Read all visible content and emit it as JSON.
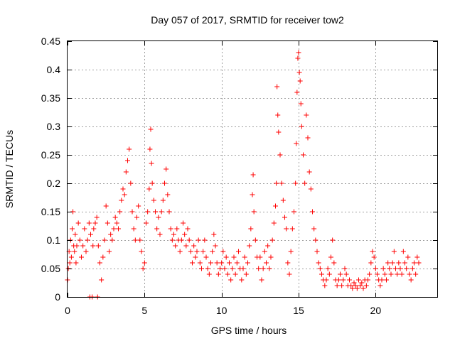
{
  "chart_data": {
    "type": "scatter",
    "title": "Day 057 of 2017, SRMTID for receiver tow2",
    "xlabel": "GPS time / hours",
    "ylabel": "SRMTID / TECUs",
    "xlim": [
      0,
      24
    ],
    "ylim": [
      0,
      0.45
    ],
    "xticks": [
      0,
      5,
      10,
      15,
      20
    ],
    "xtick_labels": [
      "0",
      "5",
      "10",
      "15",
      "20"
    ],
    "yticks": [
      0,
      0.05,
      0.1,
      0.15,
      0.2,
      0.25,
      0.3,
      0.35,
      0.4,
      0.45
    ],
    "ytick_labels": [
      "0",
      "0.05",
      "0.1",
      "0.15",
      "0.2",
      "0.25",
      "0.3",
      "0.35",
      "0.4",
      "0.45"
    ],
    "grid": true,
    "marker": "+",
    "color": "#ff0000",
    "series": [
      {
        "name": "SRMTID",
        "points": [
          [
            0.0,
            0.03
          ],
          [
            0.05,
            0.05
          ],
          [
            0.1,
            0.08
          ],
          [
            0.15,
            0.06
          ],
          [
            0.2,
            0.1
          ],
          [
            0.25,
            0.07
          ],
          [
            0.3,
            0.12
          ],
          [
            0.35,
            0.15
          ],
          [
            0.4,
            0.09
          ],
          [
            0.45,
            0.08
          ],
          [
            0.5,
            0.11
          ],
          [
            0.55,
            0.06
          ],
          [
            0.6,
            0.09
          ],
          [
            0.7,
            0.13
          ],
          [
            0.8,
            0.1
          ],
          [
            0.9,
            0.07
          ],
          [
            1.0,
            0.09
          ],
          [
            1.1,
            0.12
          ],
          [
            1.2,
            0.08
          ],
          [
            1.3,
            0.1
          ],
          [
            1.4,
            0.13
          ],
          [
            1.45,
            0.0
          ],
          [
            1.5,
            0.11
          ],
          [
            1.6,
            0.0
          ],
          [
            1.65,
            0.09
          ],
          [
            1.7,
            0.12
          ],
          [
            1.8,
            0.13
          ],
          [
            1.9,
            0.14
          ],
          [
            1.95,
            0.0
          ],
          [
            2.0,
            0.09
          ],
          [
            2.1,
            0.06
          ],
          [
            2.2,
            0.03
          ],
          [
            2.3,
            0.07
          ],
          [
            2.4,
            0.1
          ],
          [
            2.5,
            0.16
          ],
          [
            2.6,
            0.13
          ],
          [
            2.7,
            0.08
          ],
          [
            2.8,
            0.11
          ],
          [
            2.9,
            0.1
          ],
          [
            3.0,
            0.12
          ],
          [
            3.1,
            0.14
          ],
          [
            3.2,
            0.13
          ],
          [
            3.3,
            0.12
          ],
          [
            3.4,
            0.15
          ],
          [
            3.5,
            0.17
          ],
          [
            3.6,
            0.19
          ],
          [
            3.7,
            0.18
          ],
          [
            3.8,
            0.22
          ],
          [
            3.9,
            0.24
          ],
          [
            4.0,
            0.26
          ],
          [
            4.1,
            0.2
          ],
          [
            4.2,
            0.15
          ],
          [
            4.3,
            0.12
          ],
          [
            4.4,
            0.1
          ],
          [
            4.5,
            0.14
          ],
          [
            4.6,
            0.16
          ],
          [
            4.7,
            0.1
          ],
          [
            4.8,
            0.08
          ],
          [
            4.9,
            0.05
          ],
          [
            5.0,
            0.06
          ],
          [
            5.1,
            0.13
          ],
          [
            5.2,
            0.15
          ],
          [
            5.3,
            0.19
          ],
          [
            5.35,
            0.26
          ],
          [
            5.4,
            0.295
          ],
          [
            5.45,
            0.235
          ],
          [
            5.5,
            0.2
          ],
          [
            5.6,
            0.17
          ],
          [
            5.7,
            0.15
          ],
          [
            5.8,
            0.12
          ],
          [
            5.9,
            0.14
          ],
          [
            6.0,
            0.11
          ],
          [
            6.1,
            0.15
          ],
          [
            6.2,
            0.17
          ],
          [
            6.3,
            0.2
          ],
          [
            6.4,
            0.225
          ],
          [
            6.5,
            0.18
          ],
          [
            6.6,
            0.15
          ],
          [
            6.7,
            0.12
          ],
          [
            6.8,
            0.1
          ],
          [
            6.9,
            0.11
          ],
          [
            7.0,
            0.09
          ],
          [
            7.1,
            0.12
          ],
          [
            7.2,
            0.1
          ],
          [
            7.3,
            0.08
          ],
          [
            7.4,
            0.1
          ],
          [
            7.5,
            0.13
          ],
          [
            7.6,
            0.11
          ],
          [
            7.7,
            0.09
          ],
          [
            7.8,
            0.12
          ],
          [
            7.9,
            0.1
          ],
          [
            8.0,
            0.08
          ],
          [
            8.1,
            0.06
          ],
          [
            8.2,
            0.09
          ],
          [
            8.3,
            0.07
          ],
          [
            8.4,
            0.08
          ],
          [
            8.5,
            0.1
          ],
          [
            8.6,
            0.06
          ],
          [
            8.7,
            0.05
          ],
          [
            8.8,
            0.08
          ],
          [
            8.9,
            0.1
          ],
          [
            9.0,
            0.07
          ],
          [
            9.1,
            0.05
          ],
          [
            9.2,
            0.04
          ],
          [
            9.3,
            0.06
          ],
          [
            9.4,
            0.08
          ],
          [
            9.5,
            0.11
          ],
          [
            9.6,
            0.09
          ],
          [
            9.7,
            0.06
          ],
          [
            9.8,
            0.04
          ],
          [
            9.9,
            0.05
          ],
          [
            10.0,
            0.06
          ],
          [
            10.1,
            0.08
          ],
          [
            10.2,
            0.05
          ],
          [
            10.3,
            0.07
          ],
          [
            10.4,
            0.04
          ],
          [
            10.5,
            0.06
          ],
          [
            10.6,
            0.03
          ],
          [
            10.7,
            0.05
          ],
          [
            10.8,
            0.07
          ],
          [
            10.9,
            0.04
          ],
          [
            11.0,
            0.06
          ],
          [
            11.1,
            0.08
          ],
          [
            11.2,
            0.05
          ],
          [
            11.3,
            0.03
          ],
          [
            11.4,
            0.05
          ],
          [
            11.5,
            0.07
          ],
          [
            11.6,
            0.04
          ],
          [
            11.7,
            0.06
          ],
          [
            11.8,
            0.09
          ],
          [
            11.9,
            0.12
          ],
          [
            12.0,
            0.18
          ],
          [
            12.05,
            0.215
          ],
          [
            12.1,
            0.15
          ],
          [
            12.2,
            0.1
          ],
          [
            12.3,
            0.07
          ],
          [
            12.4,
            0.05
          ],
          [
            12.5,
            0.07
          ],
          [
            12.6,
            0.03
          ],
          [
            12.7,
            0.05
          ],
          [
            12.8,
            0.08
          ],
          [
            12.9,
            0.06
          ],
          [
            13.0,
            0.09
          ],
          [
            13.1,
            0.05
          ],
          [
            13.2,
            0.07
          ],
          [
            13.3,
            0.1
          ],
          [
            13.4,
            0.13
          ],
          [
            13.5,
            0.16
          ],
          [
            13.55,
            0.2
          ],
          [
            13.6,
            0.37
          ],
          [
            13.65,
            0.32
          ],
          [
            13.7,
            0.29
          ],
          [
            13.8,
            0.25
          ],
          [
            13.9,
            0.2
          ],
          [
            14.0,
            0.17
          ],
          [
            14.1,
            0.14
          ],
          [
            14.2,
            0.12
          ],
          [
            14.3,
            0.06
          ],
          [
            14.4,
            0.04
          ],
          [
            14.5,
            0.08
          ],
          [
            14.6,
            0.12
          ],
          [
            14.7,
            0.15
          ],
          [
            14.8,
            0.2
          ],
          [
            14.85,
            0.27
          ],
          [
            14.9,
            0.36
          ],
          [
            14.95,
            0.42
          ],
          [
            15.0,
            0.43
          ],
          [
            15.05,
            0.395
          ],
          [
            15.1,
            0.38
          ],
          [
            15.15,
            0.34
          ],
          [
            15.2,
            0.3
          ],
          [
            15.3,
            0.25
          ],
          [
            15.4,
            0.2
          ],
          [
            15.5,
            0.32
          ],
          [
            15.6,
            0.28
          ],
          [
            15.7,
            0.22
          ],
          [
            15.8,
            0.19
          ],
          [
            15.9,
            0.15
          ],
          [
            16.0,
            0.12
          ],
          [
            16.1,
            0.1
          ],
          [
            16.2,
            0.08
          ],
          [
            16.3,
            0.06
          ],
          [
            16.4,
            0.05
          ],
          [
            16.5,
            0.04
          ],
          [
            16.6,
            0.03
          ],
          [
            16.7,
            0.02
          ],
          [
            16.8,
            0.03
          ],
          [
            16.9,
            0.05
          ],
          [
            17.0,
            0.04
          ],
          [
            17.1,
            0.07
          ],
          [
            17.2,
            0.1
          ],
          [
            17.3,
            0.06
          ],
          [
            17.4,
            0.03
          ],
          [
            17.5,
            0.02
          ],
          [
            17.6,
            0.03
          ],
          [
            17.7,
            0.04
          ],
          [
            17.8,
            0.02
          ],
          [
            17.9,
            0.03
          ],
          [
            18.0,
            0.05
          ],
          [
            18.1,
            0.04
          ],
          [
            18.2,
            0.02
          ],
          [
            18.3,
            0.03
          ],
          [
            18.4,
            0.02
          ],
          [
            18.5,
            0.015
          ],
          [
            18.6,
            0.025
          ],
          [
            18.7,
            0.02
          ],
          [
            18.8,
            0.015
          ],
          [
            18.9,
            0.03
          ],
          [
            19.0,
            0.02
          ],
          [
            19.1,
            0.025
          ],
          [
            19.2,
            0.015
          ],
          [
            19.3,
            0.03
          ],
          [
            19.4,
            0.02
          ],
          [
            19.5,
            0.03
          ],
          [
            19.6,
            0.04
          ],
          [
            19.7,
            0.06
          ],
          [
            19.8,
            0.08
          ],
          [
            19.9,
            0.07
          ],
          [
            20.0,
            0.05
          ],
          [
            20.1,
            0.04
          ],
          [
            20.2,
            0.03
          ],
          [
            20.3,
            0.02
          ],
          [
            20.4,
            0.03
          ],
          [
            20.5,
            0.05
          ],
          [
            20.6,
            0.04
          ],
          [
            20.7,
            0.03
          ],
          [
            20.8,
            0.06
          ],
          [
            20.9,
            0.05
          ],
          [
            21.0,
            0.04
          ],
          [
            21.1,
            0.06
          ],
          [
            21.2,
            0.08
          ],
          [
            21.3,
            0.05
          ],
          [
            21.4,
            0.04
          ],
          [
            21.5,
            0.06
          ],
          [
            21.6,
            0.05
          ],
          [
            21.7,
            0.04
          ],
          [
            21.8,
            0.08
          ],
          [
            21.9,
            0.06
          ],
          [
            22.0,
            0.05
          ],
          [
            22.1,
            0.07
          ],
          [
            22.2,
            0.04
          ],
          [
            22.3,
            0.03
          ],
          [
            22.4,
            0.05
          ],
          [
            22.5,
            0.06
          ],
          [
            22.6,
            0.04
          ],
          [
            22.7,
            0.07
          ],
          [
            22.8,
            0.06
          ]
        ]
      }
    ]
  }
}
